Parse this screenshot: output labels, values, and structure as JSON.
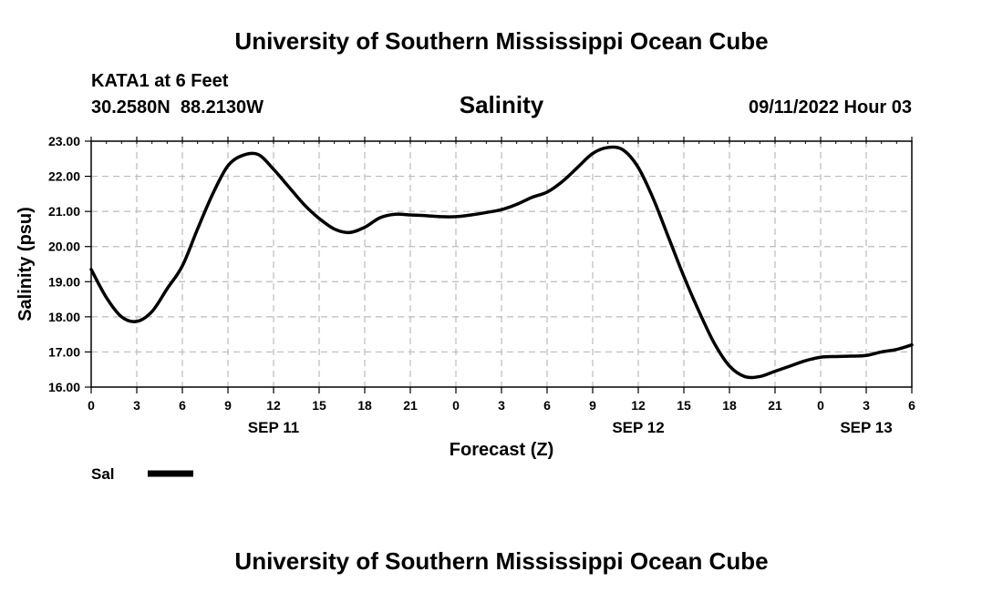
{
  "header": {
    "title": "University of Southern Mississippi Ocean Cube",
    "station": "KATA1 at 6 Feet",
    "coords": "30.2580N  88.2130W",
    "datetime": "09/11/2022 Hour 03"
  },
  "footer": {
    "title": "University of Southern Mississippi Ocean Cube"
  },
  "legend": {
    "label": "Sal"
  },
  "colors": {
    "line": "#000000",
    "grid": "#bbbbbb",
    "axis": "#000000"
  },
  "chart_data": {
    "type": "line",
    "title": "Salinity",
    "xlabel": "Forecast (Z)",
    "ylabel": "Salinity (psu)",
    "ylim": [
      16,
      23
    ],
    "yticks": [
      "16.00",
      "17.00",
      "18.00",
      "19.00",
      "20.00",
      "21.00",
      "22.00",
      "23.00"
    ],
    "xlim": [
      0,
      54
    ],
    "xticks": [
      "0",
      "3",
      "6",
      "9",
      "12",
      "15",
      "18",
      "21",
      "0",
      "3",
      "6",
      "9",
      "12",
      "15",
      "18",
      "21",
      "0",
      "3",
      "6"
    ],
    "date_labels": [
      {
        "label": "SEP 11",
        "hour": 12
      },
      {
        "label": "SEP 12",
        "hour": 36
      },
      {
        "label": "SEP 13",
        "hour": 51
      }
    ],
    "grid": true,
    "legend_position": "bottom-left",
    "series": [
      {
        "name": "Sal",
        "x": [
          0,
          1,
          2,
          3,
          4,
          5,
          6,
          7,
          8,
          9,
          10,
          11,
          12,
          13,
          14,
          15,
          16,
          17,
          18,
          19,
          20,
          21,
          22,
          23,
          24,
          25,
          26,
          27,
          28,
          29,
          30,
          31,
          32,
          33,
          34,
          35,
          36,
          37,
          38,
          39,
          40,
          41,
          42,
          43,
          44,
          45,
          46,
          47,
          48,
          49,
          50,
          51,
          52,
          53,
          54
        ],
        "y": [
          19.35,
          18.55,
          18.0,
          17.87,
          18.15,
          18.8,
          19.45,
          20.5,
          21.5,
          22.3,
          22.6,
          22.62,
          22.2,
          21.7,
          21.2,
          20.8,
          20.5,
          20.4,
          20.55,
          20.82,
          20.92,
          20.9,
          20.88,
          20.85,
          20.85,
          20.9,
          20.97,
          21.05,
          21.2,
          21.4,
          21.55,
          21.85,
          22.25,
          22.65,
          22.82,
          22.75,
          22.25,
          21.35,
          20.25,
          19.15,
          18.15,
          17.25,
          16.6,
          16.3,
          16.3,
          16.45,
          16.6,
          16.75,
          16.85,
          16.87,
          16.88,
          16.9,
          17.0,
          17.07,
          17.2
        ]
      }
    ]
  }
}
